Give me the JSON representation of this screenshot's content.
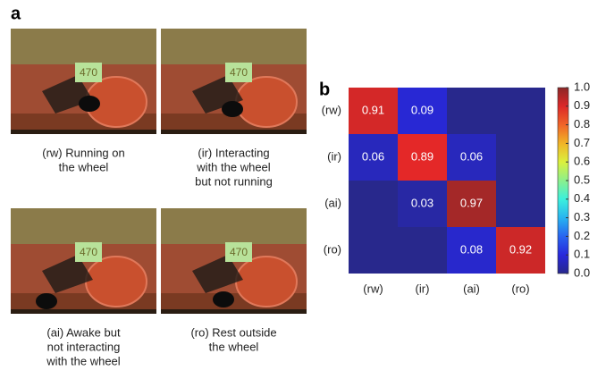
{
  "panel_a": {
    "label": "a",
    "photos": [
      {
        "tag": "470",
        "caption": [
          "(rw) Running on",
          "the wheel"
        ]
      },
      {
        "tag": "470",
        "caption": [
          "(ir) Interacting",
          "with the wheel",
          "but not running"
        ]
      },
      {
        "tag": "470",
        "caption": [
          "(ai) Awake but",
          "not interacting",
          "with the wheel"
        ]
      },
      {
        "tag": "470",
        "caption": [
          "(ro) Rest outside",
          "the wheel"
        ]
      }
    ]
  },
  "chart_data": {
    "type": "heatmap",
    "panel_label": "b",
    "x_categories": [
      "(rw)",
      "(ir)",
      "(ai)",
      "(ro)"
    ],
    "y_categories": [
      "(rw)",
      "(ir)",
      "(ai)",
      "(ro)"
    ],
    "values": [
      [
        0.91,
        0.09,
        0,
        0
      ],
      [
        0.06,
        0.89,
        0.06,
        0
      ],
      [
        0,
        0.03,
        0.97,
        0
      ],
      [
        0,
        0,
        0.08,
        0.92
      ]
    ],
    "colormap": "jet",
    "clim": [
      0,
      1
    ],
    "cticks": [
      {
        "value": 0,
        "label": "0.0"
      },
      0.1,
      0.2,
      0.3,
      0.4,
      0.5,
      0.6,
      0.7,
      0.8,
      0.9,
      {
        "value": 1,
        "label": "1.0"
      }
    ]
  }
}
